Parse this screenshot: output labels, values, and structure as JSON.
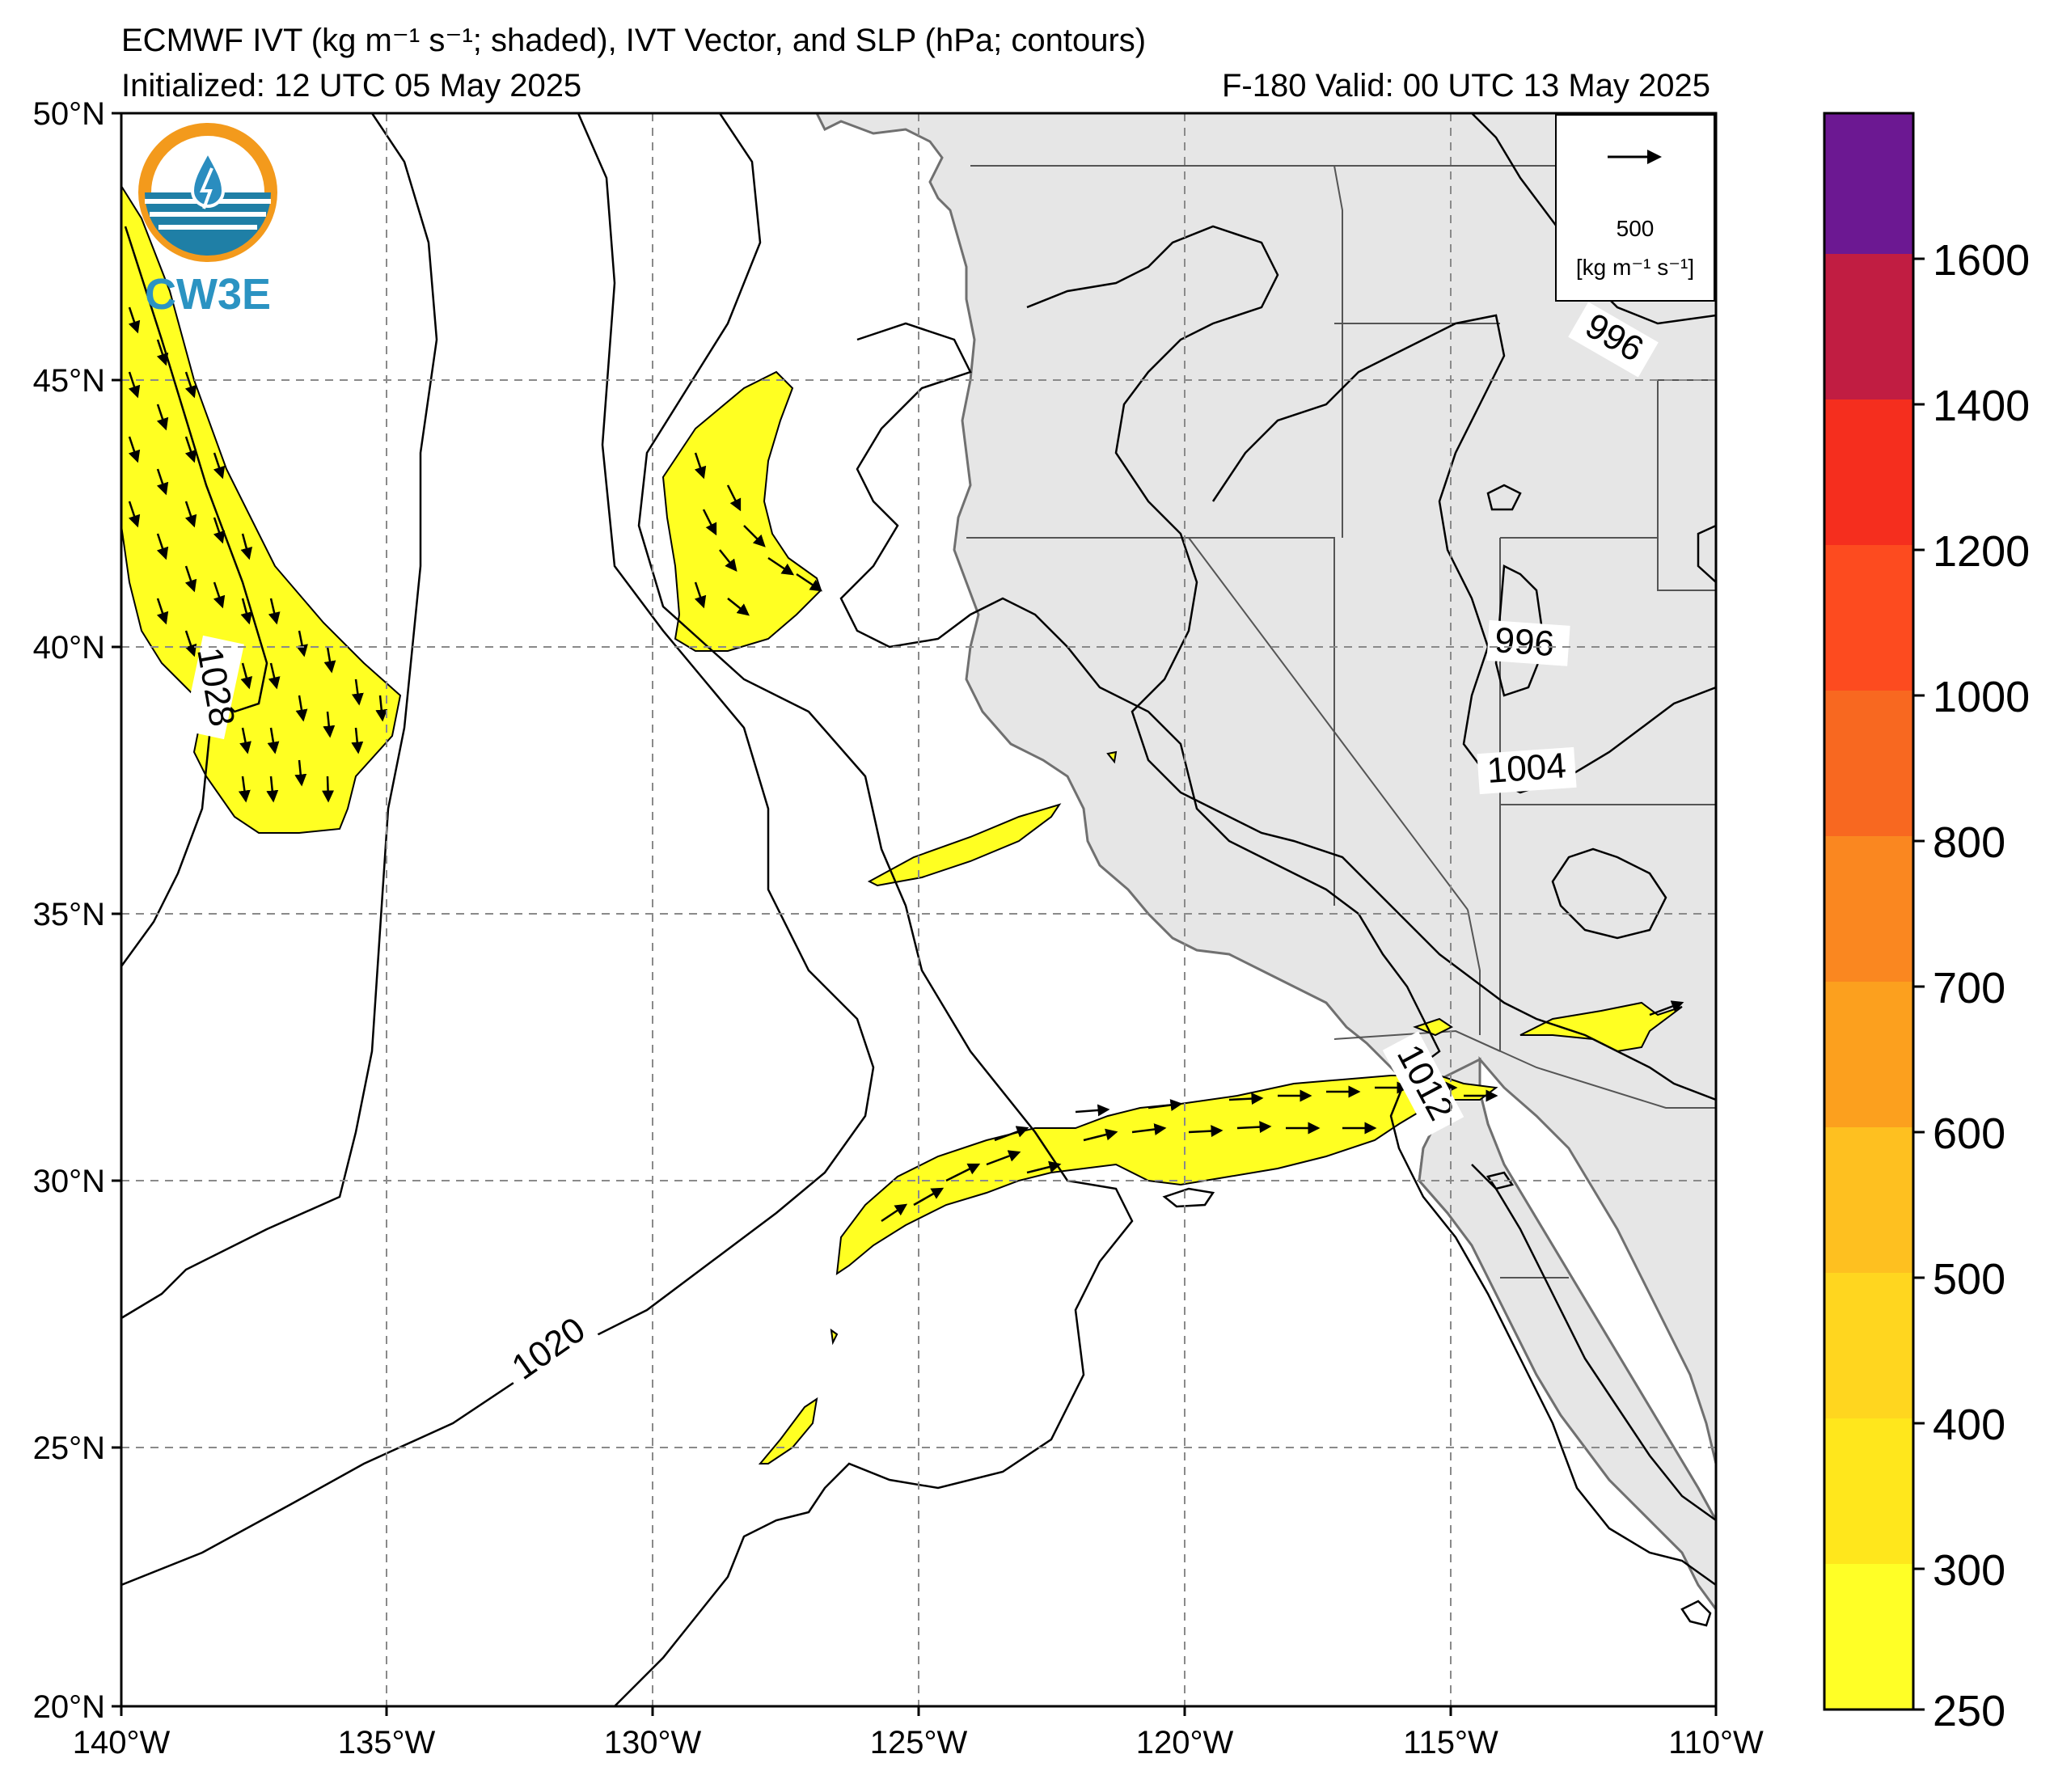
{
  "header": {
    "title": "ECMWF IVT (kg m⁻¹ s⁻¹; shaded), IVT Vector, and SLP (hPa; contours)",
    "initialized": "Initialized: 12 UTC 05 May 2025",
    "valid": "F-180  Valid: 00 UTC 13 May 2025"
  },
  "logo": {
    "text": "CW3E"
  },
  "axes": {
    "lat_labels": [
      "50°N",
      "45°N",
      "40°N",
      "35°N",
      "30°N",
      "25°N",
      "20°N"
    ],
    "lon_labels": [
      "140°W",
      "135°W",
      "130°W",
      "125°W",
      "120°W",
      "115°W",
      "110°W"
    ],
    "lat_range": [
      20,
      50
    ],
    "lon_range": [
      -140,
      -110
    ]
  },
  "contour_labels": [
    "1028",
    "1020",
    "1012",
    "1004",
    "996",
    "996"
  ],
  "vector_key": {
    "value": "500",
    "units": "[kg m⁻¹ s⁻¹]"
  },
  "colorbar": {
    "labels": [
      "1600",
      "1400",
      "1200",
      "1000",
      "800",
      "700",
      "600",
      "500",
      "400",
      "300",
      "250"
    ],
    "colors": [
      "#ffff26",
      "#ffe71c",
      "#ffd61f",
      "#fec020",
      "#fca01e",
      "#fa8720",
      "#f86820",
      "#fd4b1f",
      "#f52e1e",
      "#ec1b23",
      "#c11d42",
      "#8d176b",
      "#6c1892"
    ]
  },
  "colors": {
    "land": "#e6e6e6",
    "ivt_fill": "#ffff22",
    "coast": "#707070"
  }
}
